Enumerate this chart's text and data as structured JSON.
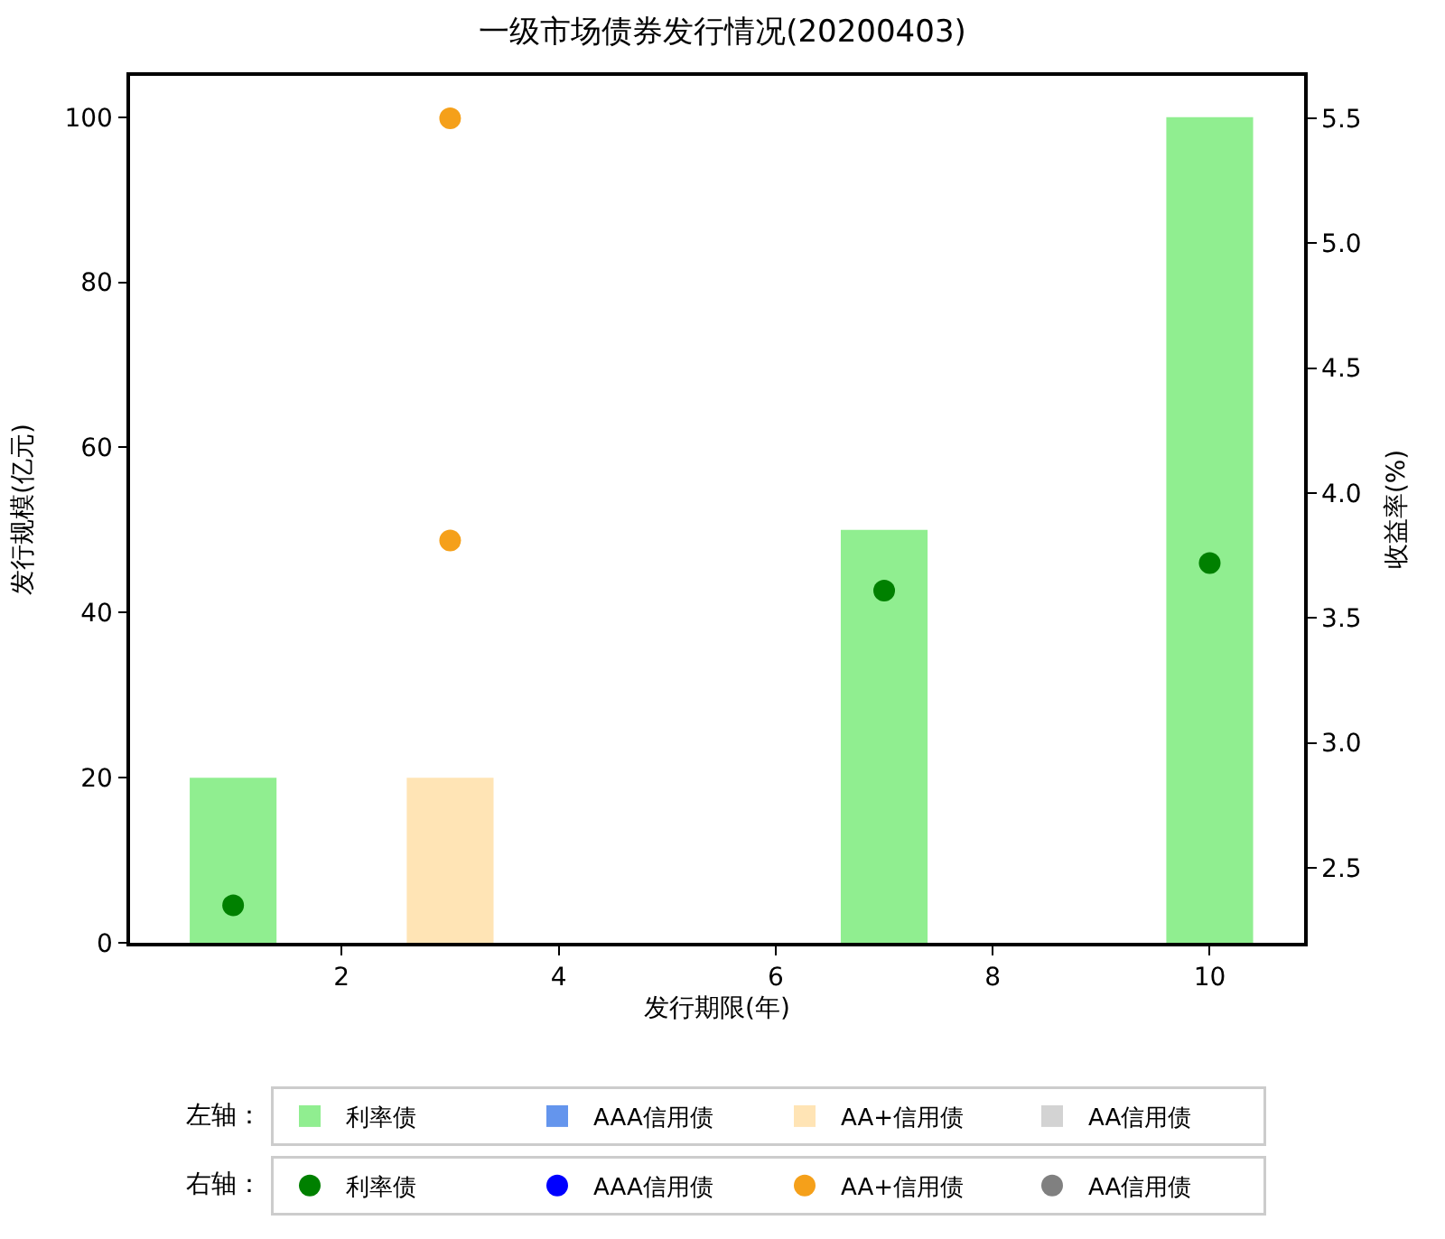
{
  "chart_data": {
    "type": "bar",
    "title": "一级市场债券发行情况(20200403)",
    "xlabel": "发行期限(年)",
    "ylabel": "发行规模(亿元)",
    "y2label": "收益率(%)",
    "x": [
      1,
      3,
      7,
      10
    ],
    "series": [
      {
        "name": "利率债",
        "color": "#90ee90",
        "values": [
          20,
          null,
          50,
          100
        ]
      },
      {
        "name": "AAA信用债",
        "color": "#6495ed",
        "values": [
          null,
          null,
          null,
          null
        ]
      },
      {
        "name": "AA+信用债",
        "color": "#ffe4b5",
        "values": [
          null,
          20,
          null,
          null
        ]
      },
      {
        "name": "AA信用债",
        "color": "#d3d3d3",
        "values": [
          null,
          null,
          null,
          null
        ]
      },
      {
        "name": "利率债",
        "type": "scatter",
        "axis": "y2",
        "color": "#008000",
        "values": [
          2.35,
          null,
          3.61,
          3.72
        ]
      },
      {
        "name": "AAA信用债",
        "type": "scatter",
        "axis": "y2",
        "color": "#0000ff",
        "values": [
          null,
          null,
          null,
          null
        ]
      },
      {
        "name": "AA+信用债",
        "type": "scatter",
        "axis": "y2",
        "color": "#f5a01a",
        "x": [
          3,
          3
        ],
        "values": [
          5.5,
          3.81
        ]
      },
      {
        "name": "AA信用债",
        "type": "scatter",
        "axis": "y2",
        "color": "#808080",
        "values": [
          null,
          null,
          null,
          null
        ]
      }
    ],
    "xlim": [
      0.05,
      10.87
    ],
    "xticks": [
      2,
      4,
      6,
      8,
      10
    ],
    "ylim": [
      0,
      105
    ],
    "yticks": [
      0,
      20,
      40,
      60,
      80,
      100
    ],
    "y2lim": [
      2.2,
      5.67
    ],
    "y2ticks": [
      2.5,
      {
        "value": 3,
        "label": "3.0"
      },
      3.5,
      {
        "value": 4,
        "label": "4.0"
      },
      4.5,
      {
        "value": 5,
        "label": "5.0"
      },
      5.5
    ],
    "annotations": [
      "左轴：",
      "右轴："
    ],
    "legend": "bottom",
    "marker": "circle"
  }
}
